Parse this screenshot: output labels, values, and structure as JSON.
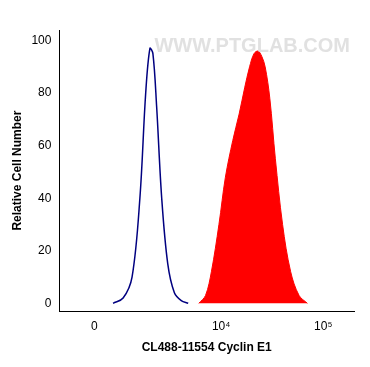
{
  "chart_data": {
    "type": "histogram",
    "x_label": "CL488-11554 Cyclin E1",
    "y_label": "Relative Cell Number",
    "annotations": [
      "WWW.PTGLAB.COM"
    ],
    "series": [
      {
        "type": "line",
        "color": "#000080",
        "x": [
          500,
          800,
          1100,
          1400,
          1650,
          1850,
          2000,
          2200,
          2500,
          2900,
          3400,
          4000,
          4700
        ],
        "values": [
          0,
          2,
          10,
          40,
          80,
          97,
          95,
          75,
          40,
          15,
          4,
          1,
          0
        ]
      },
      {
        "type": "area",
        "color": "#ff0000",
        "x": [
          6000,
          7000,
          8000,
          9500,
          11000,
          13000,
          15000,
          17000,
          19000,
          21000,
          23000,
          25000,
          27000,
          30000,
          34000,
          40000,
          48000,
          58000,
          70000
        ],
        "values": [
          0,
          3,
          12,
          30,
          48,
          62,
          72,
          82,
          90,
          95,
          96,
          94,
          90,
          78,
          55,
          30,
          12,
          3,
          0
        ]
      }
    ],
    "xlim": [
      -1000,
      200000
    ],
    "xticks": [
      0,
      {
        "value": 10000,
        "label": "10⁴"
      },
      {
        "value": 100000,
        "label": "10⁵"
      }
    ],
    "ylim": [
      -3,
      104
    ],
    "yticks": [
      0,
      20,
      40,
      60,
      80,
      100
    ],
    "grid": false
  }
}
